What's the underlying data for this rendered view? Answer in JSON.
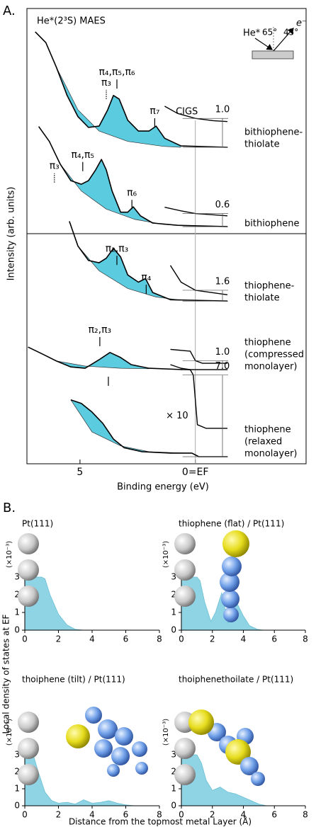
{
  "panel_labels": [
    "A.",
    "B."
  ],
  "chart_data": [
    {
      "type": "line",
      "title": "He*(2³S) MAES",
      "xlabel": "Binding energy (eV)",
      "ylabel": "Intensity (arb. units)",
      "xlim": [
        7.3,
        -4.8
      ],
      "ylim": [
        0,
        100
      ],
      "xticks": [
        5,
        {
          "value": 0,
          "label": "0=EF"
        }
      ],
      "fermi_level": 0,
      "fermi_label": "CIGS",
      "color": "#5bcbe0",
      "geometry": {
        "projectile": "He*",
        "angle_in": "65°",
        "angle_out": "45°",
        "electron": "e⁻"
      },
      "series": [
        {
          "label_lines": [
            "bithiophene-",
            "thiolate"
          ],
          "x": [
            6.94,
            6.48,
            6.02,
            5.56,
            5.09,
            4.63,
            4.17,
            3.8,
            3.55,
            3.3,
            2.93,
            2.47,
            2.01,
            1.7,
            1.33,
            0.62,
            -1.39
          ],
          "values": [
            95.3,
            92.9,
            87.4,
            81.2,
            76.5,
            74.1,
            74.4,
            78.0,
            81.2,
            80.4,
            75.7,
            73.3,
            73.3,
            74.4,
            71.7,
            70.0,
            69.7
          ],
          "background_x": [
            6.02,
            5.09,
            4.17,
            2.93,
            1.39,
            0.62
          ],
          "background": [
            87.4,
            78.0,
            73.3,
            71.0,
            69.9,
            69.7
          ],
          "inset_x": [
            1.33,
            0.77,
            0,
            -0.77,
            -1.39
          ],
          "inset_values": [
            78.8,
            77.2,
            76.1,
            75.6,
            75.4
          ],
          "scale": {
            "value": 1,
            "label": "1.0"
          },
          "peaks": [
            {
              "label": "π₃",
              "x": 3.86,
              "y": 80.4,
              "dotted": true
            },
            {
              "label": "π₄,π₅,π₆",
              "x": 3.4,
              "y": 82.7
            },
            {
              "label": "π₇",
              "x": 1.76,
              "y": 74.1
            }
          ]
        },
        {
          "label_lines": [
            "bithiophene"
          ],
          "x": [
            6.79,
            6.33,
            5.86,
            5.4,
            4.94,
            4.63,
            4.32,
            4.07,
            3.86,
            3.61,
            3.24,
            2.93,
            2.69,
            2.38,
            1.85,
            0.77,
            -1.39
          ],
          "values": [
            74.3,
            71.0,
            66.0,
            62.3,
            61.5,
            62.3,
            64.7,
            67.0,
            64.7,
            60.0,
            55.3,
            55.3,
            56.5,
            54.5,
            52.9,
            52.4,
            52.1
          ],
          "background_x": [
            5.86,
            4.94,
            3.86,
            2.62,
            1.39,
            0.77
          ],
          "background": [
            66.0,
            60.0,
            56.0,
            53.7,
            52.6,
            52.4
          ],
          "inset_x": [
            1.33,
            0.62,
            0,
            -1.39
          ],
          "inset_values": [
            56.4,
            55.6,
            55.0,
            54.5
          ],
          "scale": 0.6,
          "peaks": [
            {
              "label": "π₃",
              "x": 6.11,
              "y": 61.9,
              "dotted": true
            },
            {
              "label": "π₄,π₅",
              "x": 4.88,
              "y": 64.4
            },
            {
              "label": "π₆",
              "x": 2.75,
              "y": 56.0
            }
          ]
        },
        {
          "label_lines": [
            "thiophene-",
            "thiolate"
          ],
          "x": [
            5.46,
            5.09,
            4.63,
            4.17,
            3.86,
            3.55,
            3.24,
            2.93,
            2.47,
            2.16,
            1.85,
            1.08,
            -1.39
          ],
          "values": [
            53.3,
            47.8,
            44.6,
            44.1,
            45.1,
            47.3,
            45.4,
            41.4,
            39.8,
            40.6,
            37.5,
            35.9,
            35.6
          ],
          "background_x": [
            5.09,
            4.17,
            2.93,
            1.7,
            0.77
          ],
          "background": [
            47.8,
            42.3,
            38.4,
            36.5,
            35.9
          ],
          "inset_x": [
            1.08,
            0.62,
            0,
            -1.39
          ],
          "inset_values": [
            43.5,
            39.8,
            38.0,
            37.0
          ],
          "scale": 1.6,
          "peaks": [
            {
              "label": "π₂,π₃",
              "x": 3.4,
              "y": 43.6
            },
            {
              "label": "π₄",
              "x": 2.13,
              "y": 37.2
            }
          ]
        },
        {
          "label_lines": [
            "thiophene",
            "(compressed",
            "monolayer)"
          ],
          "x": [
            7.25,
            6.64,
            6.02,
            5.4,
            4.78,
            4.17,
            3.7,
            3.24,
            2.78,
            2.01,
            0.46,
            -1.39
          ],
          "values": [
            25.4,
            23.9,
            22.3,
            21.0,
            20.7,
            22.6,
            24.2,
            23.1,
            21.5,
            20.7,
            20.4,
            20.4
          ],
          "background_x": [
            6.02,
            4.78,
            3.24,
            2.01
          ],
          "background": [
            22.3,
            21.2,
            20.7,
            20.6
          ],
          "inset_x": [
            1.08,
            0.46,
            0.22,
            0,
            -0.31,
            -1.39
          ],
          "inset_values": [
            24.9,
            24.6,
            24.5,
            22.4,
            21.8,
            21.8
          ],
          "scale": {
            "value": 1,
            "label": "1.0"
          },
          "peaks": [
            {
              "label": "π₂,π₃",
              "x": 4.14,
              "y": 25.6
            }
          ]
        },
        {
          "label_lines": [
            "thiophene",
            "(relaxed",
            "monolayer)"
          ],
          "x": [
            5.4,
            4.94,
            4.48,
            4.01,
            3.55,
            3.09,
            2.31,
            1.08,
            0.15,
            -0.15,
            -1.39
          ],
          "values": [
            13.7,
            12.9,
            11.0,
            8.5,
            5.0,
            3.1,
            2.2,
            1.9,
            1.9,
            1.1,
            1.1
          ],
          "background_x": [
            5.4,
            4.48,
            3.24,
            2.01,
            0.46
          ],
          "background": [
            13.7,
            6.6,
            3.5,
            2.2,
            1.9
          ],
          "inset_x": [
            1.08,
            0.62,
            0.22,
            0.09,
            -0.09,
            -0.46,
            -1.39
          ],
          "inset_values": [
            21.5,
            20.7,
            20.4,
            19.2,
            8.2,
            7.4,
            7.4
          ],
          "scale": {
            "value": 7,
            "label": "7.0"
          },
          "multiplier": "× 10",
          "peaks": [
            {
              "x": 3.77,
              "y": 16.8
            }
          ]
        }
      ]
    },
    {
      "type": "area",
      "title": "Pt(111)",
      "ylabel": "(×10⁻³)",
      "color": "#8fd4e4",
      "x": [
        0,
        0.5,
        1,
        1.2,
        1.5,
        2,
        2.5,
        3,
        3.5
      ],
      "values": [
        3,
        3,
        3,
        2.9,
        2,
        0.9,
        0.3,
        0.05,
        0
      ],
      "xlim": [
        0,
        8
      ],
      "ylim": [
        0,
        3
      ],
      "xticks": [
        0,
        2,
        4,
        6,
        8
      ],
      "yticks": [
        0,
        1,
        2,
        3
      ]
    },
    {
      "type": "area",
      "title": "thiophene (flat) / Pt(111)",
      "ylabel": "(×10⁻³)",
      "color": "#8fd4e4",
      "x": [
        0,
        0.5,
        1,
        1.2,
        1.5,
        1.9,
        2.2,
        2.6,
        3.0,
        3.3,
        3.6,
        4.0,
        4.4,
        4.9,
        5.3
      ],
      "values": [
        3,
        3,
        3,
        2.8,
        1.6,
        0.5,
        1.0,
        2.1,
        0.4,
        1.1,
        1.5,
        0.8,
        0.25,
        0.05,
        0
      ],
      "xlim": [
        0,
        8
      ],
      "ylim": [
        0,
        3
      ],
      "xticks": [
        0,
        2,
        4,
        6,
        8
      ],
      "yticks": [
        0,
        1,
        2,
        3
      ]
    },
    {
      "type": "area",
      "title": "thoiphene (tilt) / Pt(111)",
      "ylabel": "(×10⁻³)",
      "color": "#8fd4e4",
      "x": [
        0,
        0.5,
        0.8,
        1.2,
        1.6,
        2,
        2.5,
        3,
        3.5,
        4,
        4.5,
        5,
        5.5,
        6,
        6.5
      ],
      "values": [
        3,
        3,
        2,
        0.8,
        0.3,
        0.15,
        0.2,
        0.1,
        0.35,
        0.15,
        0.2,
        0.3,
        0.15,
        0.05,
        0
      ],
      "xlim": [
        0,
        8
      ],
      "ylim": [
        0,
        3
      ],
      "xticks": [
        0,
        2,
        4,
        6,
        8
      ],
      "yticks": [
        0,
        1,
        2,
        3
      ]
    },
    {
      "type": "area",
      "title": "thoiphenethoilate / Pt(111)",
      "ylabel": "(×10⁻³)",
      "color": "#8fd4e4",
      "x": [
        0,
        0.5,
        1,
        1.3,
        1.6,
        2,
        2.5,
        3,
        3.5,
        4,
        4.5,
        5,
        5.5
      ],
      "values": [
        3,
        3,
        3,
        2.5,
        1.5,
        0.9,
        1.1,
        0.8,
        0.7,
        0.5,
        0.3,
        0.1,
        0
      ],
      "xlim": [
        0,
        8
      ],
      "ylim": [
        0,
        3
      ],
      "xticks": [
        0,
        2,
        4,
        6,
        8
      ],
      "yticks": [
        0,
        1,
        2,
        3
      ]
    }
  ],
  "panel_b": {
    "ylabel": "Local density of states at EF",
    "xlabel": "Distance from the topmost metal Layer (Å)"
  }
}
